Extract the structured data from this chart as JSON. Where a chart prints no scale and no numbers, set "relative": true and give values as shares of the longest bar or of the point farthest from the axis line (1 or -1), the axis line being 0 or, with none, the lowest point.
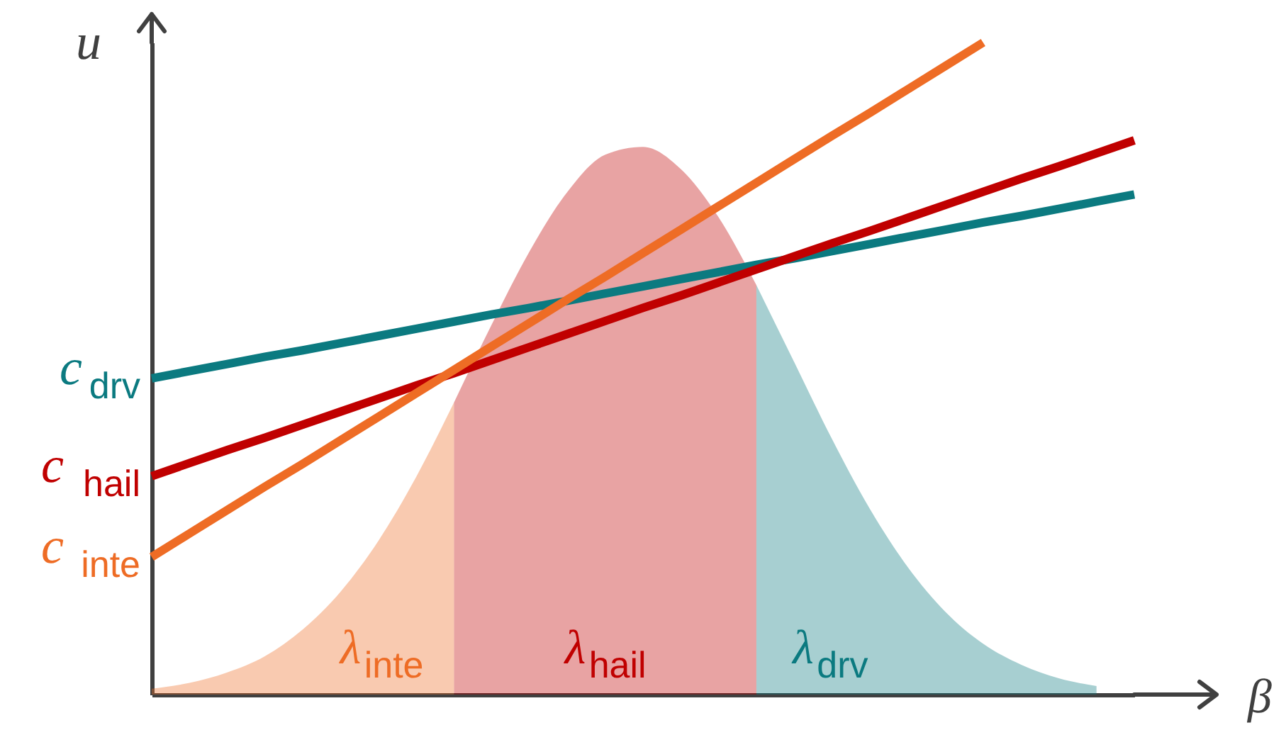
{
  "chart_data": {
    "type": "line",
    "relative": true,
    "xlabel": "β",
    "ylabel": "u",
    "grid": false,
    "line_style": "solid",
    "categories": [
      null,
      null,
      null,
      null,
      null,
      null,
      null,
      null,
      null,
      null,
      null,
      null,
      null,
      null,
      null,
      null,
      null,
      null,
      null,
      null,
      null,
      null,
      null,
      null,
      null,
      null,
      null
    ],
    "series": [
      {
        "name": "λ$_{inte}$",
        "type": "area",
        "color": "#ee6c25",
        "values": [
          0.009,
          0.018,
          0.034,
          0.059,
          0.1,
          0.158,
          0.236,
          0.334,
          0.448,
          null,
          null,
          null,
          null,
          null,
          null,
          null,
          null,
          null,
          null,
          null,
          null,
          null,
          null,
          null,
          null,
          null,
          null
        ]
      },
      {
        "name": "λ$_{hail}$",
        "type": "area",
        "color": "#c00000",
        "values": [
          null,
          null,
          null,
          null,
          null,
          null,
          null,
          null,
          0.448,
          0.568,
          0.68,
          0.771,
          0.828,
          0.84,
          0.806,
          0.732,
          0.628,
          null,
          null,
          null,
          null,
          null,
          null,
          null,
          null,
          null,
          null
        ]
      },
      {
        "name": "λ$_{drv}$",
        "type": "area",
        "color": "#0b7a80",
        "values": [
          null,
          null,
          null,
          null,
          null,
          null,
          null,
          null,
          null,
          null,
          null,
          null,
          null,
          null,
          null,
          null,
          0.628,
          0.51,
          0.392,
          0.285,
          0.196,
          0.127,
          0.078,
          0.046,
          0.025,
          0.013,
          null
        ]
      },
      {
        "name": "c$_{drv}$",
        "color": "#0b7a80",
        "values": [
          0.485,
          0.496,
          0.507,
          0.518,
          0.528,
          0.539,
          0.55,
          0.561,
          0.572,
          0.583,
          0.593,
          0.604,
          0.615,
          0.626,
          0.637,
          0.648,
          0.659,
          0.669,
          0.68,
          0.691,
          0.702,
          0.713,
          0.724,
          0.734,
          0.745,
          0.756,
          0.767
        ]
      },
      {
        "name": "c$_{hail}$",
        "color": "#c00000",
        "values": [
          0.335,
          0.355,
          0.375,
          0.394,
          0.414,
          0.434,
          0.454,
          0.474,
          0.493,
          0.513,
          0.533,
          0.553,
          0.573,
          0.593,
          0.612,
          0.632,
          0.652,
          0.672,
          0.692,
          0.711,
          0.731,
          0.751,
          0.771,
          0.791,
          0.81,
          0.83,
          0.85
        ]
      },
      {
        "name": "c$_{inte}$",
        "color": "#ee6c25",
        "values": [
          0.211,
          0.247,
          0.283,
          0.319,
          0.354,
          0.39,
          0.426,
          0.462,
          0.498,
          0.534,
          0.57,
          0.606,
          0.641,
          0.677,
          0.713,
          0.749,
          0.785,
          0.821,
          0.857,
          0.892,
          0.928,
          0.964,
          1.0,
          null,
          null,
          null,
          null
        ]
      }
    ]
  }
}
